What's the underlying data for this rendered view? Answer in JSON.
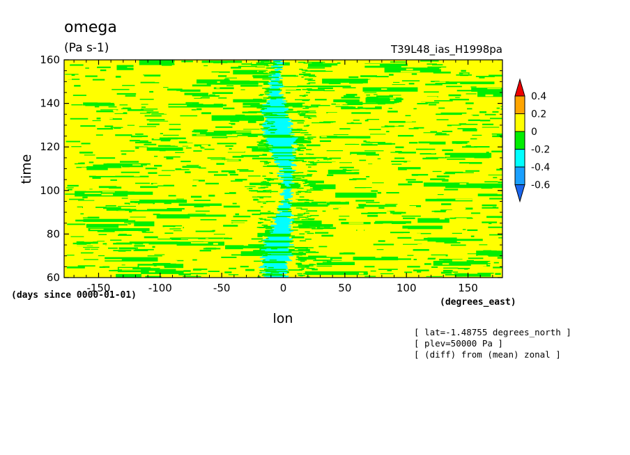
{
  "chart_data": {
    "type": "heatmap",
    "title": "omega",
    "units": "(Pa s-1)",
    "run_label": "T39L48_ias_H1998pa",
    "xlabel": "lon",
    "x_units": "(degrees_east)",
    "ylabel": "time",
    "y_units": "(days since 0000-01-01)",
    "xlim": [
      -178,
      178
    ],
    "ylim": [
      60,
      160
    ],
    "x_ticks": [
      -150,
      -100,
      -50,
      0,
      50,
      100,
      150
    ],
    "y_ticks": [
      60,
      80,
      100,
      120,
      140,
      160
    ],
    "x_tick_labels": [
      "-150",
      "-100",
      "-50",
      "0",
      "50",
      "100",
      "150"
    ],
    "y_tick_labels": [
      "60",
      "80",
      "100",
      "120",
      "140",
      "160"
    ],
    "colorbar": {
      "levels": [
        -0.6,
        -0.4,
        -0.2,
        0,
        0.2,
        0.4
      ],
      "labels": [
        "0.4",
        "0.2",
        "0",
        "-0.2",
        "-0.4",
        "-0.6"
      ],
      "colors": [
        "#1a66ee",
        "#1aa0ff",
        "#00ffff",
        "#00ee00",
        "#ffff00",
        "#ffa500",
        "#ee0000"
      ]
    },
    "field_description": "time-longitude Hovmoller of omega anomaly; mostly 0 to 0.2 (yellow) and -0.2 to 0 (green); negative band -0.4 to -0.2 near lon -15 to 15",
    "annotations": [
      "[ lat=-1.48755 degrees_north ]",
      "[ plev=50000 Pa ]",
      "[ (diff) from (mean) zonal ]"
    ]
  }
}
